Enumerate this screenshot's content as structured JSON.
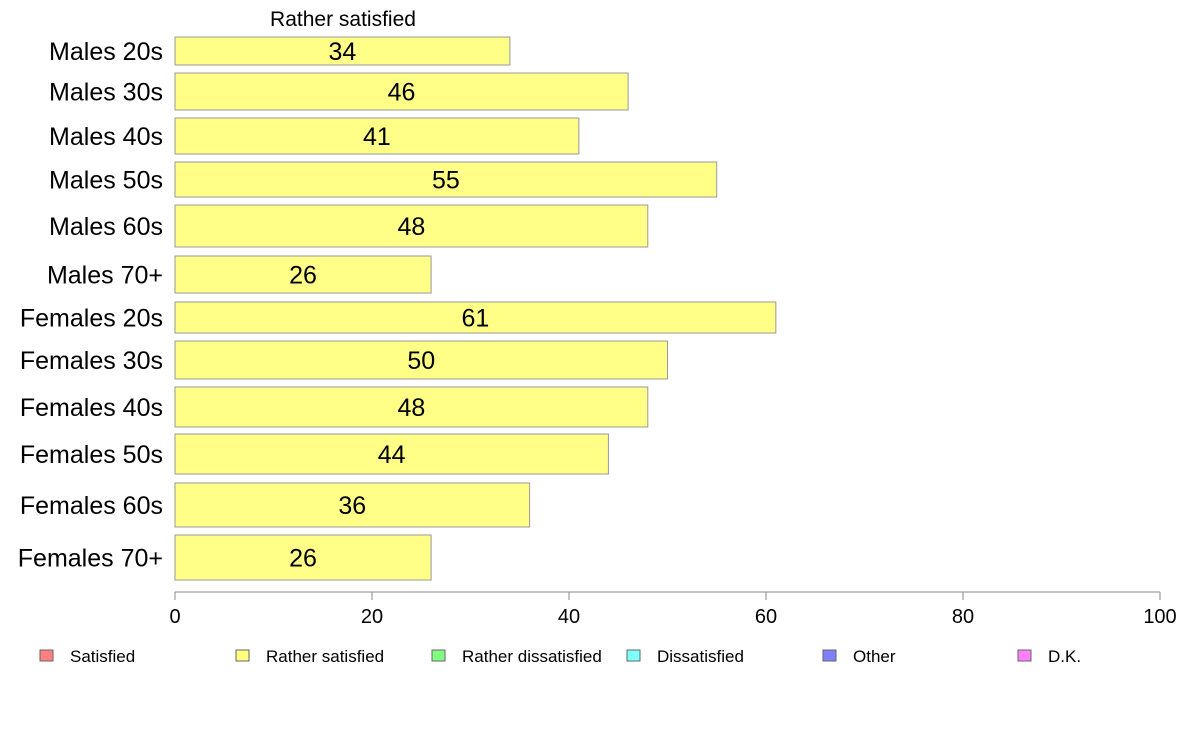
{
  "chart_data": {
    "type": "bar",
    "orientation": "horizontal",
    "title": "Rather satisfied",
    "xlabel": "",
    "ylabel": "",
    "categories": [
      "Males 20s",
      "Males 30s",
      "Males 40s",
      "Males 50s",
      "Males 60s",
      "Males 70+",
      "Females 20s",
      "Females 30s",
      "Females 40s",
      "Females 50s",
      "Females 60s",
      "Females 70+"
    ],
    "values": [
      34,
      46,
      41,
      55,
      48,
      26,
      61,
      50,
      48,
      44,
      36,
      26
    ],
    "data_labels": [
      "34",
      "46",
      "41",
      "55",
      "48",
      "26",
      "61",
      "50",
      "48",
      "44",
      "36",
      "26"
    ],
    "xlim": [
      0,
      100
    ],
    "xticks": [
      0,
      20,
      40,
      60,
      80,
      100
    ],
    "xtick_labels": [
      "0",
      "20",
      "40",
      "60",
      "80",
      "100"
    ],
    "grid": false,
    "legend_position": "bottom",
    "bar_color": "#ffff88",
    "legend": [
      {
        "name": "Satisfied",
        "color": "#ff8080"
      },
      {
        "name": "Rather satisfied",
        "color": "#ffff80"
      },
      {
        "name": "Rather dissatisfied",
        "color": "#80ff80"
      },
      {
        "name": "Dissatisfied",
        "color": "#80ffff"
      },
      {
        "name": "Other",
        "color": "#8080ff"
      },
      {
        "name": "D.K.",
        "color": "#ff80ff"
      }
    ]
  }
}
